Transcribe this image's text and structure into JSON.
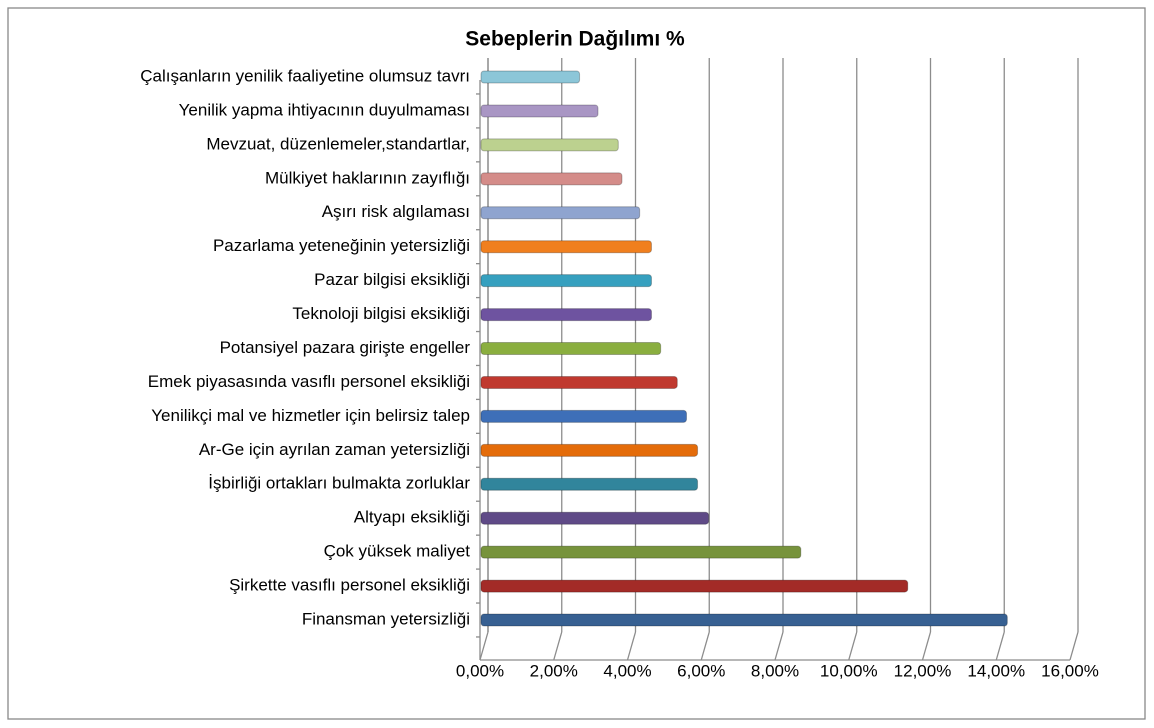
{
  "chart_data": {
    "type": "bar",
    "orientation": "horizontal",
    "title": "Sebeplerin Dağılımı %",
    "categories": [
      "Finansman yetersizliği",
      "Şirkette  vasıflı personel  eksikliği",
      "Çok yüksek maliyet",
      "Altyapı eksikliği",
      "İşbirliği ortakları bulmakta zorluklar",
      "Ar-Ge için ayrılan zaman yetersizliği",
      "Yenilikçi mal ve hizmetler için belirsiz talep",
      "Emek piyasasında vasıflı personel eksikliği",
      "Potansiyel pazara girişte engeller",
      "Teknoloji bilgisi eksikliği",
      "Pazar bilgisi eksikliği",
      "Pazarlama  yeteneğinin yetersizliği",
      "Aşırı risk algılaması",
      "Mülkiyet haklarının  zayıflığı",
      "Mevzuat, düzenlemeler,standartlar,",
      "Yenilik yapma ihtiyacının duyulmaması",
      "Çalışanların yenilik faaliyetine olumsuz tavrı"
    ],
    "values": [
      14.3,
      11.6,
      8.7,
      6.2,
      5.9,
      5.9,
      5.6,
      5.35,
      4.9,
      4.65,
      4.65,
      4.65,
      4.33,
      3.85,
      3.75,
      3.2,
      2.7
    ],
    "colors": [
      "#376092",
      "#a32b27",
      "#77933c",
      "#5f4a87",
      "#31859c",
      "#e46c0a",
      "#3e6fb8",
      "#c0392f",
      "#8aae3f",
      "#6e53a0",
      "#36a0bf",
      "#f07f1e",
      "#8fa4cf",
      "#d48c89",
      "#bcd18f",
      "#a996c4",
      "#8cc6d8"
    ],
    "xlim": [
      0,
      16
    ],
    "xticks": [
      {
        "value": 0,
        "label": "0,00%"
      },
      {
        "value": 2,
        "label": "2,00%"
      },
      {
        "value": 4,
        "label": "4,00%"
      },
      {
        "value": 6,
        "label": "6,00%"
      },
      {
        "value": 8,
        "label": "8,00%"
      },
      {
        "value": 10,
        "label": "10,00%"
      },
      {
        "value": 12,
        "label": "12,00%"
      },
      {
        "value": 14,
        "label": "14,00%"
      },
      {
        "value": 16,
        "label": "16,00%"
      }
    ],
    "grid": true
  }
}
